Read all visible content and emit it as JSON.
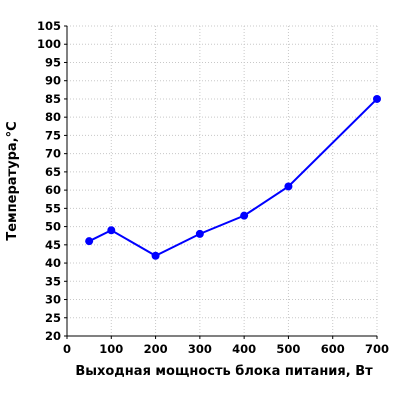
{
  "chart_data": {
    "type": "line",
    "title": "",
    "xlabel": "Выходная мощность блока питания, Вт",
    "ylabel": "Температура,°C",
    "xlim": [
      0,
      700
    ],
    "ylim": [
      20,
      105
    ],
    "x_ticks": [
      0,
      100,
      200,
      300,
      400,
      500,
      600,
      700
    ],
    "y_ticks": [
      20,
      25,
      30,
      35,
      40,
      45,
      50,
      55,
      60,
      65,
      70,
      75,
      80,
      85,
      90,
      95,
      100,
      105
    ],
    "grid": true,
    "legend": "none",
    "series": [
      {
        "color": "#0000ff",
        "x": [
          50,
          100,
          200,
          300,
          400,
          500,
          700
        ],
        "y": [
          46,
          49,
          42,
          48,
          53,
          61,
          85
        ]
      }
    ]
  }
}
